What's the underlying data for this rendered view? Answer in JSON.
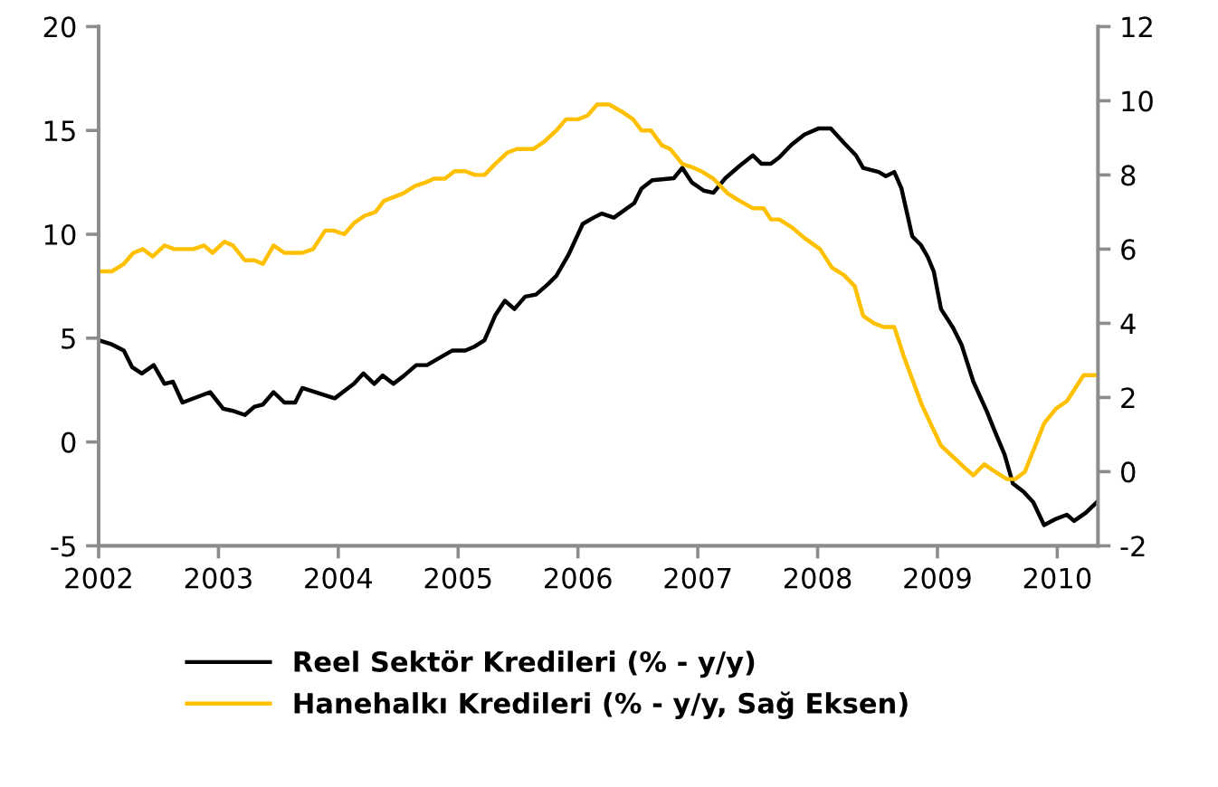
{
  "chart_data": {
    "type": "line",
    "xlim": [
      2002,
      2010.34
    ],
    "xticks": [
      2002,
      2003,
      2004,
      2005,
      2006,
      2007,
      2008,
      2009,
      2010
    ],
    "ylim": [
      -5,
      20
    ],
    "yticks": [
      -5,
      0,
      5,
      10,
      15,
      20
    ],
    "y2lim": [
      -2,
      12
    ],
    "y2ticks": [
      -2,
      0,
      2,
      4,
      6,
      8,
      10,
      12
    ],
    "grid": false,
    "legend": "bottom",
    "marker": "none",
    "line_style": "solid",
    "series": [
      {
        "name": "Reel Sektör Kredileri (% - y/y)",
        "color": "#000000",
        "x": [
          2002.0,
          2002.11,
          2002.21,
          2002.28,
          2002.36,
          2002.46,
          2002.55,
          2002.62,
          2002.7,
          2002.93,
          2003.04,
          2003.12,
          2003.22,
          2003.3,
          2003.37,
          2003.46,
          2003.55,
          2003.64,
          2003.7,
          2003.97,
          2004.06,
          2004.13,
          2004.21,
          2004.3,
          2004.37,
          2004.46,
          2004.55,
          2004.65,
          2004.74,
          2004.89,
          2004.95,
          2005.06,
          2005.14,
          2005.22,
          2005.31,
          2005.39,
          2005.47,
          2005.56,
          2005.65,
          2005.75,
          2005.82,
          2005.92,
          2006.04,
          2006.13,
          2006.2,
          2006.3,
          2006.47,
          2006.53,
          2006.62,
          2006.8,
          2006.87,
          2006.95,
          2007.05,
          2007.13,
          2007.23,
          2007.35,
          2007.46,
          2007.53,
          2007.61,
          2007.68,
          2007.78,
          2007.89,
          2008.01,
          2008.11,
          2008.22,
          2008.32,
          2008.38,
          2008.51,
          2008.57,
          2008.64,
          2008.7,
          2008.79,
          2008.86,
          2008.92,
          2008.97,
          2009.03,
          2009.13,
          2009.2,
          2009.3,
          2009.41,
          2009.48,
          2009.56,
          2009.63,
          2009.72,
          2009.8,
          2009.89,
          2009.99,
          2010.08,
          2010.14,
          2010.24,
          2010.33
        ],
        "values": [
          4.9,
          4.7,
          4.4,
          3.6,
          3.3,
          3.7,
          2.8,
          2.9,
          1.9,
          2.4,
          1.6,
          1.5,
          1.3,
          1.7,
          1.8,
          2.4,
          1.9,
          1.9,
          2.6,
          2.1,
          2.5,
          2.8,
          3.3,
          2.8,
          3.2,
          2.8,
          3.2,
          3.7,
          3.7,
          4.2,
          4.4,
          4.4,
          4.6,
          4.9,
          6.1,
          6.8,
          6.4,
          7.0,
          7.1,
          7.6,
          8.0,
          9.0,
          10.5,
          10.8,
          11.0,
          10.8,
          11.5,
          12.2,
          12.6,
          12.7,
          13.2,
          12.5,
          12.1,
          12.0,
          12.7,
          13.3,
          13.8,
          13.4,
          13.4,
          13.7,
          14.3,
          14.8,
          15.1,
          15.1,
          14.4,
          13.8,
          13.2,
          13.0,
          12.8,
          13.0,
          12.2,
          9.9,
          9.5,
          8.9,
          8.2,
          6.4,
          5.5,
          4.7,
          2.9,
          1.5,
          0.5,
          -0.6,
          -2.0,
          -2.4,
          -2.9,
          -4.0,
          -3.7,
          -3.5,
          -3.8,
          -3.4,
          -2.9
        ]
      },
      {
        "name": "Hanehalkı Kredileri (% - y/y, Sağ Eksen)",
        "color": "#ffc000",
        "axis": "y2",
        "x": [
          2002.0,
          2002.11,
          2002.21,
          2002.29,
          2002.37,
          2002.45,
          2002.55,
          2002.63,
          2002.79,
          2002.88,
          2002.95,
          2003.05,
          2003.12,
          2003.22,
          2003.3,
          2003.37,
          2003.46,
          2003.55,
          2003.7,
          2003.79,
          2003.89,
          2003.96,
          2004.05,
          2004.13,
          2004.22,
          2004.31,
          2004.38,
          2004.54,
          2004.64,
          2004.73,
          2004.8,
          2004.89,
          2004.97,
          2005.06,
          2005.14,
          2005.22,
          2005.31,
          2005.41,
          2005.49,
          2005.63,
          2005.72,
          2005.82,
          2005.9,
          2006.0,
          2006.08,
          2006.16,
          2006.26,
          2006.37,
          2006.46,
          2006.53,
          2006.61,
          2006.7,
          2006.77,
          2006.87,
          2006.96,
          2007.03,
          2007.13,
          2007.25,
          2007.35,
          2007.46,
          2007.55,
          2007.61,
          2007.68,
          2007.78,
          2007.89,
          2008.02,
          2008.12,
          2008.22,
          2008.31,
          2008.38,
          2008.47,
          2008.55,
          2008.64,
          2008.72,
          2008.87,
          2009.03,
          2009.13,
          2009.23,
          2009.3,
          2009.39,
          2009.48,
          2009.58,
          2009.65,
          2009.73,
          2009.89,
          2009.99,
          2010.08,
          2010.22,
          2010.32
        ],
        "values": [
          5.4,
          5.4,
          5.6,
          5.9,
          6.0,
          5.8,
          6.1,
          6.0,
          6.0,
          6.1,
          5.9,
          6.2,
          6.1,
          5.7,
          5.7,
          5.6,
          6.1,
          5.9,
          5.9,
          6.0,
          6.5,
          6.5,
          6.4,
          6.7,
          6.9,
          7.0,
          7.3,
          7.5,
          7.7,
          7.8,
          7.9,
          7.9,
          8.1,
          8.1,
          8.0,
          8.0,
          8.3,
          8.6,
          8.7,
          8.7,
          8.9,
          9.2,
          9.5,
          9.5,
          9.6,
          9.9,
          9.9,
          9.7,
          9.5,
          9.2,
          9.2,
          8.8,
          8.7,
          8.3,
          8.2,
          8.1,
          7.9,
          7.5,
          7.3,
          7.1,
          7.1,
          6.8,
          6.8,
          6.6,
          6.3,
          6.0,
          5.5,
          5.3,
          5.0,
          4.2,
          4.0,
          3.9,
          3.9,
          3.1,
          1.8,
          0.7,
          0.4,
          0.1,
          -0.1,
          0.2,
          0.0,
          -0.2,
          -0.2,
          0.0,
          1.3,
          1.7,
          1.9,
          2.6,
          2.6
        ]
      }
    ]
  }
}
